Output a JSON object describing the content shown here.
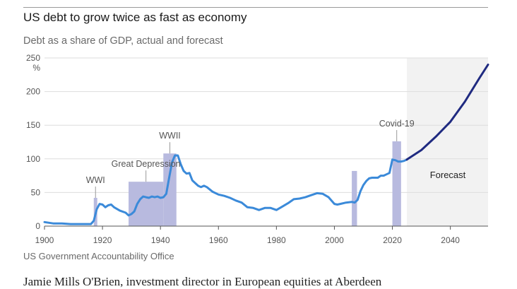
{
  "header": {
    "title": "US debt to grow twice as fast as economy",
    "subtitle": "Debt as a share of GDP, actual and forecast"
  },
  "footer": {
    "source": "US Government Accountability Office",
    "cutoff_text": "Jamie Mills O'Brien, investment director in European equities at Aberdeen"
  },
  "chart_data": {
    "type": "line",
    "x_range": [
      1900,
      2053
    ],
    "ylim": [
      0,
      250
    ],
    "yticks": [
      0,
      50,
      100,
      150,
      200,
      250
    ],
    "y_unit_label": "%",
    "xticks": [
      1900,
      1920,
      1940,
      1960,
      1980,
      2000,
      2020,
      2040
    ],
    "grid": true,
    "colors": {
      "actual": "#3b8ad9",
      "forecast": "#1f2a80",
      "band": "#b8badf",
      "forecast_bg": "#f2f2f2"
    },
    "forecast_start": 2025,
    "forecast_label": "Forecast",
    "events": [
      {
        "label": "WWI",
        "start": 1917,
        "end": 1918.2,
        "height": 42
      },
      {
        "label": "Great Depression",
        "start": 1929,
        "end": 1941,
        "height": 66
      },
      {
        "label": "WWII",
        "start": 1941,
        "end": 1945.5,
        "height": 108
      },
      {
        "label": "",
        "start": 2006,
        "end": 2007.8,
        "height": 82
      },
      {
        "label": "Covid-19",
        "start": 2020,
        "end": 2023,
        "height": 126
      }
    ],
    "series": [
      {
        "x": [
          1900,
          1903,
          1906,
          1909,
          1912,
          1915,
          1916,
          1917,
          1918,
          1919,
          1920,
          1921,
          1922,
          1923,
          1924,
          1926,
          1928,
          1929,
          1930,
          1931,
          1932,
          1933,
          1934,
          1935,
          1936,
          1937,
          1938,
          1939,
          1940,
          1941,
          1942,
          1943,
          1944,
          1945,
          1946,
          1947,
          1948,
          1949,
          1950,
          1951,
          1952,
          1953,
          1954,
          1955,
          1956,
          1958,
          1960,
          1962,
          1964,
          1966,
          1968,
          1970,
          1972,
          1974,
          1976,
          1978,
          1980,
          1982,
          1984,
          1986,
          1988,
          1990,
          1992,
          1994,
          1996,
          1998,
          2000,
          2001,
          2002,
          2004,
          2006,
          2007,
          2008,
          2009,
          2010,
          2011,
          2012,
          2013,
          2014,
          2015,
          2016,
          2017,
          2018,
          2019,
          2020,
          2021,
          2022,
          2023,
          2024,
          2025
        ],
        "y": [
          6,
          4,
          4,
          3,
          3,
          3,
          3,
          8,
          25,
          33,
          32,
          28,
          31,
          32,
          28,
          23,
          20,
          16,
          18,
          22,
          33,
          40,
          44,
          43,
          42,
          44,
          43,
          44,
          42,
          43,
          48,
          72,
          95,
          105,
          105,
          92,
          82,
          78,
          79,
          68,
          64,
          60,
          58,
          60,
          58,
          51,
          47,
          45,
          42,
          38,
          35,
          28,
          27,
          24,
          27,
          27,
          24,
          29,
          34,
          40,
          41,
          43,
          46,
          49,
          48,
          43,
          33,
          32,
          33,
          35,
          36,
          35,
          39,
          52,
          61,
          67,
          71,
          72,
          72,
          72,
          75,
          75,
          77,
          79,
          99,
          98,
          96,
          96,
          97,
          99
        ]
      },
      {
        "x": [
          2025,
          2030,
          2035,
          2040,
          2045,
          2050,
          2053
        ],
        "y": [
          99,
          113,
          133,
          155,
          185,
          220,
          240
        ]
      }
    ]
  }
}
